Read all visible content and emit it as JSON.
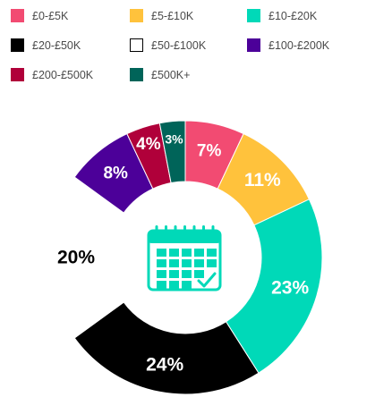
{
  "chart_data": {
    "type": "pie",
    "donut": true,
    "categories": [
      "£0-£5K",
      "£5-£10K",
      "£10-£20K",
      "£20-£50K",
      "£50-£100K",
      "£100-£200K",
      "£200-£500K",
      "£500K+"
    ],
    "values": [
      7,
      11,
      23,
      24,
      20,
      8,
      4,
      3
    ],
    "labels": [
      "7%",
      "11%",
      "23%",
      "24%",
      "20%",
      "8%",
      "4%",
      "3%"
    ],
    "colors": [
      "#f24b72",
      "#ffc23c",
      "#00d9b8",
      "#000000",
      "#ffffff",
      "#4c0099",
      "#b0003a",
      "#006459"
    ],
    "label_colors": [
      "#ffffff",
      "#ffffff",
      "#ffffff",
      "#ffffff",
      "#000000",
      "#ffffff",
      "#ffffff",
      "#ffffff"
    ],
    "legend_placement": "top",
    "center_icon": "calendar-check-icon",
    "icon_color": "#00d9b8"
  }
}
